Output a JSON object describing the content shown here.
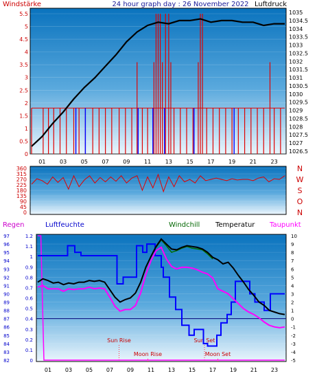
{
  "chart_data": [
    {
      "type": "line",
      "header": {
        "left": "Windstärke",
        "center": "24 hour graph day : 26 November 2022",
        "right": "Luftdruck"
      },
      "x_ticks": [
        "01",
        "03",
        "05",
        "07",
        "09",
        "11",
        "13",
        "15",
        "17",
        "19",
        "21",
        "23"
      ],
      "y_left_ticks": [
        "0",
        "0.5",
        "1",
        "1.5",
        "2",
        "2.5",
        "3",
        "3.5",
        "4",
        "4.5",
        "5",
        "5.5"
      ],
      "y_left_range": [
        0,
        5.5
      ],
      "y_right_ticks": [
        "1026.5",
        "1027",
        "1027.5",
        "1028",
        "1028.5",
        "1029",
        "1029.5",
        "1030",
        "1030.5",
        "1031",
        "1031.5",
        "1032",
        "1032.5",
        "1033",
        "1033.5",
        "1034",
        "1034.5",
        "1035"
      ],
      "y_right_range": [
        1026.5,
        1035
      ],
      "series": [
        {
          "color": "#000000",
          "axis": "right",
          "x": [
            0,
            1,
            2,
            3,
            4,
            5,
            6,
            7,
            8,
            9,
            10,
            11,
            12,
            13,
            14,
            15,
            16,
            17,
            18,
            19,
            20,
            21,
            22,
            23,
            24
          ],
          "values": [
            1026.8,
            1027.4,
            1028.2,
            1028.9,
            1029.7,
            1030.4,
            1031.0,
            1031.7,
            1032.4,
            1033.2,
            1033.8,
            1034.2,
            1034.4,
            1034.3,
            1034.5,
            1034.5,
            1034.6,
            1034.4,
            1034.5,
            1034.5,
            1034.4,
            1034.4,
            1034.2,
            1034.3,
            1034.3
          ]
        }
      ],
      "bars_red": [
        {
          "x": 0.0,
          "v": 1.8
        },
        {
          "x": 1.1,
          "v": 1.8
        },
        {
          "x": 1.6,
          "v": 1.8
        },
        {
          "x": 2.1,
          "v": 1.8
        },
        {
          "x": 2.7,
          "v": 1.8
        },
        {
          "x": 3.3,
          "v": 1.8
        },
        {
          "x": 4.0,
          "v": 1.8
        },
        {
          "x": 4.5,
          "v": 1.8
        },
        {
          "x": 5.1,
          "v": 1.8
        },
        {
          "x": 5.8,
          "v": 1.8
        },
        {
          "x": 6.4,
          "v": 1.8
        },
        {
          "x": 7.0,
          "v": 1.8
        },
        {
          "x": 7.6,
          "v": 1.8
        },
        {
          "x": 8.3,
          "v": 1.8
        },
        {
          "x": 8.9,
          "v": 1.8
        },
        {
          "x": 9.5,
          "v": 1.8
        },
        {
          "x": 10.0,
          "v": 3.6
        },
        {
          "x": 10.5,
          "v": 1.8
        },
        {
          "x": 11.0,
          "v": 1.8
        },
        {
          "x": 11.6,
          "v": 3.6
        },
        {
          "x": 11.8,
          "v": 5.5
        },
        {
          "x": 12.0,
          "v": 5.5
        },
        {
          "x": 12.2,
          "v": 5.5
        },
        {
          "x": 12.4,
          "v": 3.6
        },
        {
          "x": 12.7,
          "v": 5.5
        },
        {
          "x": 13.0,
          "v": 5.5
        },
        {
          "x": 13.2,
          "v": 3.6
        },
        {
          "x": 13.5,
          "v": 1.8
        },
        {
          "x": 14.1,
          "v": 1.8
        },
        {
          "x": 14.7,
          "v": 1.8
        },
        {
          "x": 15.3,
          "v": 1.8
        },
        {
          "x": 15.8,
          "v": 3.6
        },
        {
          "x": 16.0,
          "v": 5.5
        },
        {
          "x": 16.2,
          "v": 5.5
        },
        {
          "x": 16.6,
          "v": 1.8
        },
        {
          "x": 17.2,
          "v": 1.8
        },
        {
          "x": 17.8,
          "v": 1.8
        },
        {
          "x": 18.4,
          "v": 1.8
        },
        {
          "x": 19.0,
          "v": 1.8
        },
        {
          "x": 19.6,
          "v": 1.8
        },
        {
          "x": 20.2,
          "v": 1.8
        },
        {
          "x": 20.8,
          "v": 1.8
        },
        {
          "x": 21.4,
          "v": 1.8
        },
        {
          "x": 22.0,
          "v": 1.8
        },
        {
          "x": 22.6,
          "v": 3.6
        },
        {
          "x": 23.0,
          "v": 1.8
        },
        {
          "x": 23.6,
          "v": 1.8
        }
      ],
      "bars_blue": [
        {
          "x": 4.2,
          "v": 1.8
        },
        {
          "x": 5.1,
          "v": 1.8
        },
        {
          "x": 10.1,
          "v": 1.8
        },
        {
          "x": 11.5,
          "v": 1.8
        },
        {
          "x": 12.6,
          "v": 1.8
        },
        {
          "x": 15.4,
          "v": 1.8
        },
        {
          "x": 19.2,
          "v": 1.8
        }
      ]
    },
    {
      "type": "line",
      "x_ticks": [
        "01",
        "03",
        "05",
        "07",
        "09",
        "11",
        "13",
        "15",
        "17",
        "19",
        "21",
        "23"
      ],
      "y_left_ticks": [
        "0",
        "45",
        "90",
        "135",
        "180",
        "225",
        "270",
        "315",
        "360"
      ],
      "y_left_range": [
        0,
        360
      ],
      "compass_labels": [
        "N",
        "W",
        "S",
        "O",
        "N"
      ],
      "series": [
        {
          "color": "#e00000",
          "x": [
            0,
            0.5,
            1,
            1.5,
            2,
            2.5,
            3,
            3.5,
            4,
            4.5,
            5,
            5.5,
            6,
            6.5,
            7,
            7.5,
            8,
            8.5,
            9,
            9.5,
            10,
            10.5,
            11,
            11.5,
            12,
            12.5,
            13,
            13.5,
            14,
            14.5,
            15,
            15.5,
            16,
            16.5,
            17,
            17.5,
            18,
            18.5,
            19,
            19.5,
            20,
            20.5,
            21,
            21.5,
            22,
            22.5,
            23,
            23.5,
            24
          ],
          "values": [
            230,
            275,
            260,
            230,
            290,
            245,
            285,
            190,
            300,
            210,
            265,
            300,
            240,
            285,
            250,
            290,
            255,
            300,
            240,
            280,
            300,
            180,
            290,
            200,
            310,
            170,
            290,
            210,
            300,
            250,
            270,
            240,
            300,
            260,
            270,
            280,
            270,
            260,
            275,
            265,
            270,
            270,
            260,
            280,
            290,
            250,
            275,
            270,
            300
          ]
        }
      ]
    },
    {
      "type": "line",
      "legend": {
        "regen": "Regen",
        "luftfeuchte": "Luftfeuchte",
        "windchill": "Windchill",
        "temperatur": "Temperatur",
        "taupunkt": "Taupunkt"
      },
      "x_ticks": [
        "01",
        "03",
        "05",
        "07",
        "09",
        "11",
        "13",
        "15",
        "17",
        "19",
        "21",
        "23"
      ],
      "y_humidity_ticks": [
        "82",
        "83",
        "84",
        "85",
        "86",
        "87",
        "88",
        "89",
        "90",
        "91",
        "92",
        "93",
        "94",
        "95",
        "96",
        "97"
      ],
      "y_humidity_range": [
        82,
        97
      ],
      "y_rain_ticks": [
        "0",
        "0.1",
        "0.2",
        "0.3",
        "0.4",
        "0.5",
        "0.6",
        "0.7",
        "0.8",
        "0.9",
        "1",
        "1.1",
        "1.2"
      ],
      "y_rain_range": [
        0,
        1.2
      ],
      "y_temp_ticks": [
        "-5",
        "-4",
        "-3",
        "-2",
        "-1",
        "0",
        "1",
        "2",
        "3",
        "4",
        "5",
        "6",
        "7",
        "8",
        "9",
        "10"
      ],
      "y_temp_range": [
        -5,
        10
      ],
      "annotations": {
        "sun_rise": "Sun Rise",
        "sun_set": "Sun Set",
        "moon_rise": "Moon Rise",
        "moon_set": "Moon Set"
      },
      "event_times": {
        "sun_rise": 7.9,
        "sun_set": 16.2,
        "moon_rise": 10.7,
        "moon_set": 17.5
      },
      "series": [
        {
          "key": "temperatur",
          "color": "#000000",
          "axis": "temp",
          "x": [
            0,
            0.5,
            1,
            1.5,
            2,
            2.5,
            3,
            3.5,
            4,
            4.5,
            5,
            5.5,
            6,
            6.5,
            7,
            7.5,
            8,
            8.5,
            9,
            9.5,
            10,
            10.5,
            11,
            11.5,
            12,
            12.5,
            13,
            13.5,
            14,
            14.5,
            15,
            15.5,
            16,
            16.5,
            17,
            17.5,
            18,
            18.5,
            19,
            19.5,
            20,
            20.5,
            21,
            21.5,
            22,
            22.5,
            23,
            23.5,
            24
          ],
          "values": [
            4.4,
            4.8,
            4.6,
            4.3,
            4.4,
            4.1,
            4.3,
            4.2,
            4.4,
            4.4,
            4.6,
            4.5,
            4.6,
            4.4,
            3.5,
            2.6,
            2.0,
            2.3,
            2.5,
            3.1,
            4.4,
            6.2,
            7.5,
            8.7,
            9.6,
            9.0,
            8.4,
            8.3,
            8.6,
            8.8,
            8.7,
            8.6,
            8.4,
            8.0,
            7.4,
            7.1,
            6.6,
            6.8,
            6.1,
            5.2,
            4.4,
            3.5,
            2.8,
            2.0,
            1.6,
            1.0,
            0.8,
            0.6,
            0.5
          ]
        },
        {
          "key": "windchill",
          "color": "#007000",
          "axis": "temp",
          "x": [
            11.5,
            12,
            12.5,
            13,
            13.5,
            14,
            14.5,
            15,
            15.5,
            16,
            16.5,
            17
          ],
          "values": [
            8.6,
            9.5,
            8.8,
            8.0,
            8.2,
            8.5,
            8.7,
            8.5,
            8.4,
            8.3,
            7.8,
            7.2
          ]
        },
        {
          "key": "taupunkt",
          "color": "#ff00ff",
          "axis": "temp",
          "x": [
            0,
            0.5,
            1,
            1.5,
            2,
            2.5,
            3,
            3.5,
            4,
            4.5,
            5,
            5.5,
            6,
            6.5,
            7,
            7.5,
            8,
            8.5,
            9,
            9.5,
            10,
            10.5,
            11,
            11.5,
            12,
            12.5,
            13,
            13.5,
            14,
            14.5,
            15,
            15.5,
            16,
            16.5,
            17,
            17.5,
            18,
            18.5,
            19,
            19.5,
            20,
            20.5,
            21,
            21.5,
            22,
            22.5,
            23,
            23.5,
            24
          ],
          "values": [
            3.8,
            4.0,
            3.6,
            3.6,
            3.6,
            3.3,
            3.6,
            3.5,
            3.6,
            3.6,
            3.8,
            3.6,
            3.7,
            3.6,
            2.6,
            1.5,
            0.9,
            1.1,
            1.1,
            1.6,
            3.1,
            5.3,
            7.0,
            8.2,
            8.6,
            7.2,
            6.3,
            6.0,
            6.2,
            6.2,
            6.1,
            5.9,
            5.6,
            5.4,
            4.9,
            3.6,
            3.3,
            3.0,
            2.4,
            1.8,
            1.2,
            0.8,
            0.5,
            0.1,
            -0.4,
            -0.8,
            -1.0,
            -1.1,
            -1.0
          ]
        },
        {
          "key": "luftfeuchte",
          "color": "#0000ff",
          "axis": "humidity",
          "x": [
            0,
            2,
            2.9,
            3.6,
            4.2,
            5,
            6,
            7,
            7.7,
            8.3,
            9,
            9.6,
            10.2,
            10.6,
            11.4,
            12,
            12.2,
            12.8,
            13.4,
            14,
            14.7,
            15.2,
            16.1,
            16.5,
            17.4,
            17.8,
            18.4,
            18.8,
            19.2,
            20.6,
            21.1,
            22,
            22.6,
            24
          ],
          "values": [
            94.6,
            94.6,
            95.8,
            95.0,
            94.6,
            94.6,
            94.6,
            94.6,
            91.2,
            92.0,
            92.0,
            95.8,
            95.0,
            96.0,
            94.6,
            93.2,
            92.0,
            89.6,
            88.1,
            86.2,
            85.0,
            85.7,
            84.0,
            83.7,
            85.0,
            86.5,
            87.5,
            89.0,
            91.5,
            90.0,
            89.0,
            88.0,
            90.0,
            90.0
          ]
        },
        {
          "key": "regen",
          "color": "#ff00ff",
          "axis": "rain",
          "x": [
            0,
            0.3,
            0.6,
            24
          ],
          "values": [
            1.2,
            1.2,
            0,
            0
          ]
        }
      ],
      "reference_line": {
        "axis": "temp",
        "value": 0
      }
    }
  ]
}
